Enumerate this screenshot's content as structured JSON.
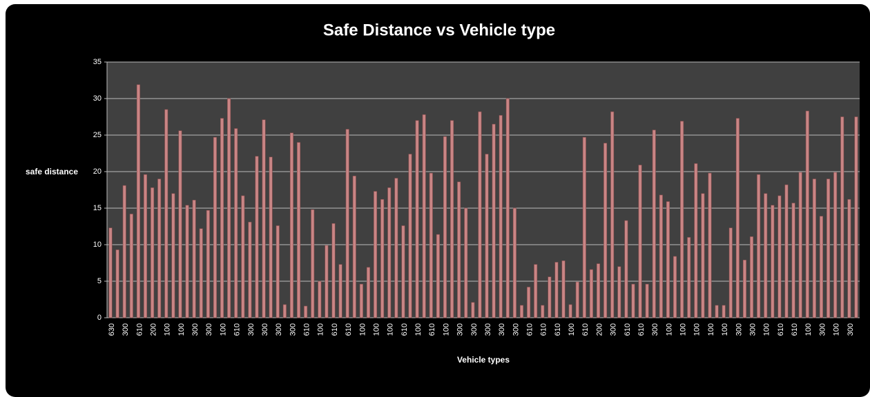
{
  "chart_data": {
    "type": "bar",
    "title": "Safe Distance vs Vehicle type",
    "x_label": "Vehicle types",
    "y_label": "safe distance",
    "categories": [
      "630",
      null,
      "300",
      null,
      "610",
      null,
      "200",
      null,
      "100",
      null,
      "100",
      null,
      "300",
      null,
      "300",
      null,
      "100",
      null,
      "610",
      null,
      "300",
      null,
      "300",
      null,
      "300",
      null,
      "300",
      null,
      "610",
      null,
      "100",
      null,
      "610",
      null,
      "610",
      null,
      "100",
      null,
      "100",
      null,
      "100",
      null,
      "610",
      null,
      "100",
      null,
      "610",
      null,
      "100",
      null,
      "300",
      null,
      "300",
      null,
      "300",
      null,
      "300",
      null,
      "300",
      null,
      "610",
      null,
      "610",
      null,
      "610",
      null,
      "100",
      null,
      "610",
      null,
      "200",
      null,
      "300",
      null,
      "610",
      null,
      "610",
      null,
      "300",
      null,
      "100",
      null,
      "100",
      null,
      "100",
      null,
      "100",
      null,
      "100",
      null,
      "300",
      null,
      "300",
      null,
      "100",
      null,
      "610",
      null,
      "610",
      null,
      "100",
      null,
      "300",
      null,
      "100",
      null,
      "300",
      null
    ],
    "values": [
      12.3,
      9.3,
      18.1,
      14.2,
      31.9,
      19.6,
      17.8,
      19,
      28.5,
      17,
      25.6,
      15.4,
      16.1,
      12.2,
      14.7,
      24.7,
      27.3,
      30,
      25.9,
      16.7,
      13.1,
      22.1,
      27.1,
      22,
      12.6,
      1.8,
      25.3,
      24,
      1.6,
      14.8,
      5,
      9.9,
      12.9,
      7.3,
      25.8,
      19.4,
      4.6,
      6.9,
      17.3,
      16.2,
      17.8,
      19.1,
      12.6,
      22.4,
      27,
      27.8,
      19.8,
      11.4,
      24.8,
      27,
      18.6,
      15,
      2.1,
      28.2,
      22.4,
      26.5,
      27.7,
      30,
      15,
      1.7,
      4.2,
      7.3,
      1.7,
      5.6,
      7.6,
      7.8,
      1.8,
      4.9,
      24.7,
      6.6,
      7.4,
      23.9,
      28.2,
      7,
      13.3,
      4.6,
      20.9,
      4.6,
      25.7,
      16.8,
      15.9,
      8.4,
      26.9,
      11,
      21.1,
      17,
      19.8,
      1.7,
      1.7,
      12.3,
      27.3,
      7.9,
      11.1,
      19.6,
      17,
      15.4,
      16.7,
      18.2,
      15.7,
      19.9,
      28.3,
      19,
      13.9,
      19,
      19.9,
      27.5,
      16.2,
      27.5
    ],
    "color": "#c98585",
    "ylim": [
      0,
      35
    ],
    "yticks": [
      0,
      5,
      10,
      15,
      20,
      25,
      30,
      35
    ],
    "grid": true
  }
}
